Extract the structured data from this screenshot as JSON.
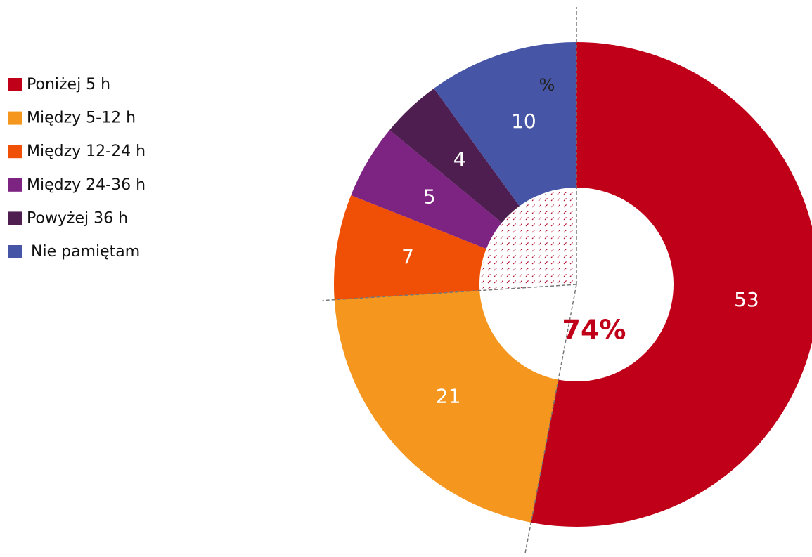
{
  "chart_data": {
    "type": "donut",
    "categories": [
      "Poniżej 5 h",
      "Między 5-12 h",
      "Między 12-24 h",
      "Między 24-36 h",
      "Powyżej 36 h",
      "Nie pamiętam"
    ],
    "values": [
      53,
      21,
      7,
      5,
      4,
      10
    ],
    "colors": [
      "#c00018",
      "#f5961e",
      "#f05006",
      "#7d2382",
      "#4f1e50",
      "#4655a5"
    ],
    "annotations": [
      "%",
      "74%"
    ]
  }
}
